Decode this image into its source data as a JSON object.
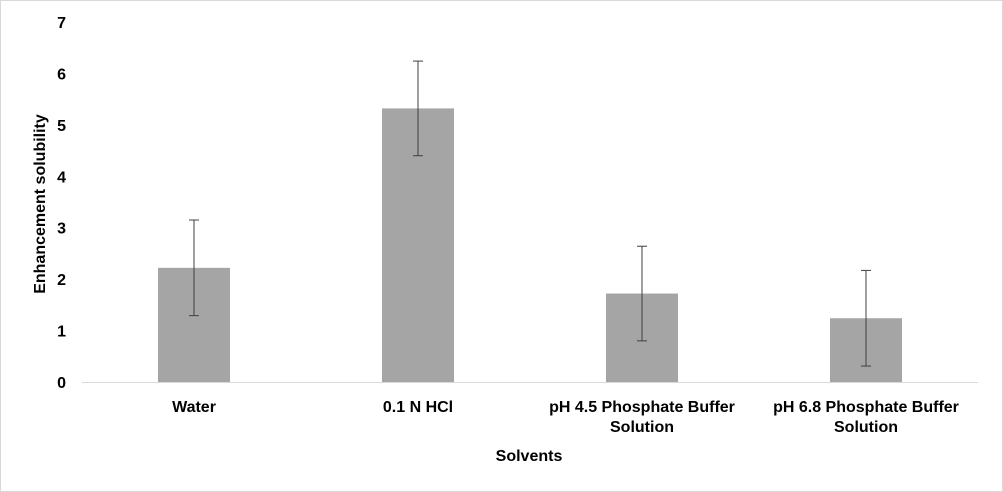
{
  "chart_data": {
    "type": "bar",
    "title": "",
    "xlabel": "Solvents",
    "ylabel": "Enhancement solubility",
    "categories": [
      "Water",
      "0.1 N HCl",
      "pH 4.5 Phosphate Buffer Solution",
      "pH 6.8 Phosphate Buffer Solution"
    ],
    "category_lines": [
      [
        "Water"
      ],
      [
        "0.1 N HCl"
      ],
      [
        "pH 4.5 Phosphate Buffer",
        "Solution"
      ],
      [
        "pH 6.8 Phosphate Buffer",
        "Solution"
      ]
    ],
    "values": [
      2.22,
      5.32,
      1.72,
      1.24
    ],
    "error": [
      0.93,
      0.92,
      0.92,
      0.93
    ],
    "ylim": [
      0,
      7
    ],
    "yticks": [
      0,
      1,
      2,
      3,
      4,
      5,
      6,
      7
    ],
    "grid": false,
    "legend": "none",
    "colors": {
      "bar": "#a5a5a5",
      "error_bar": "#404040",
      "axis": "#d9d9d9"
    }
  }
}
